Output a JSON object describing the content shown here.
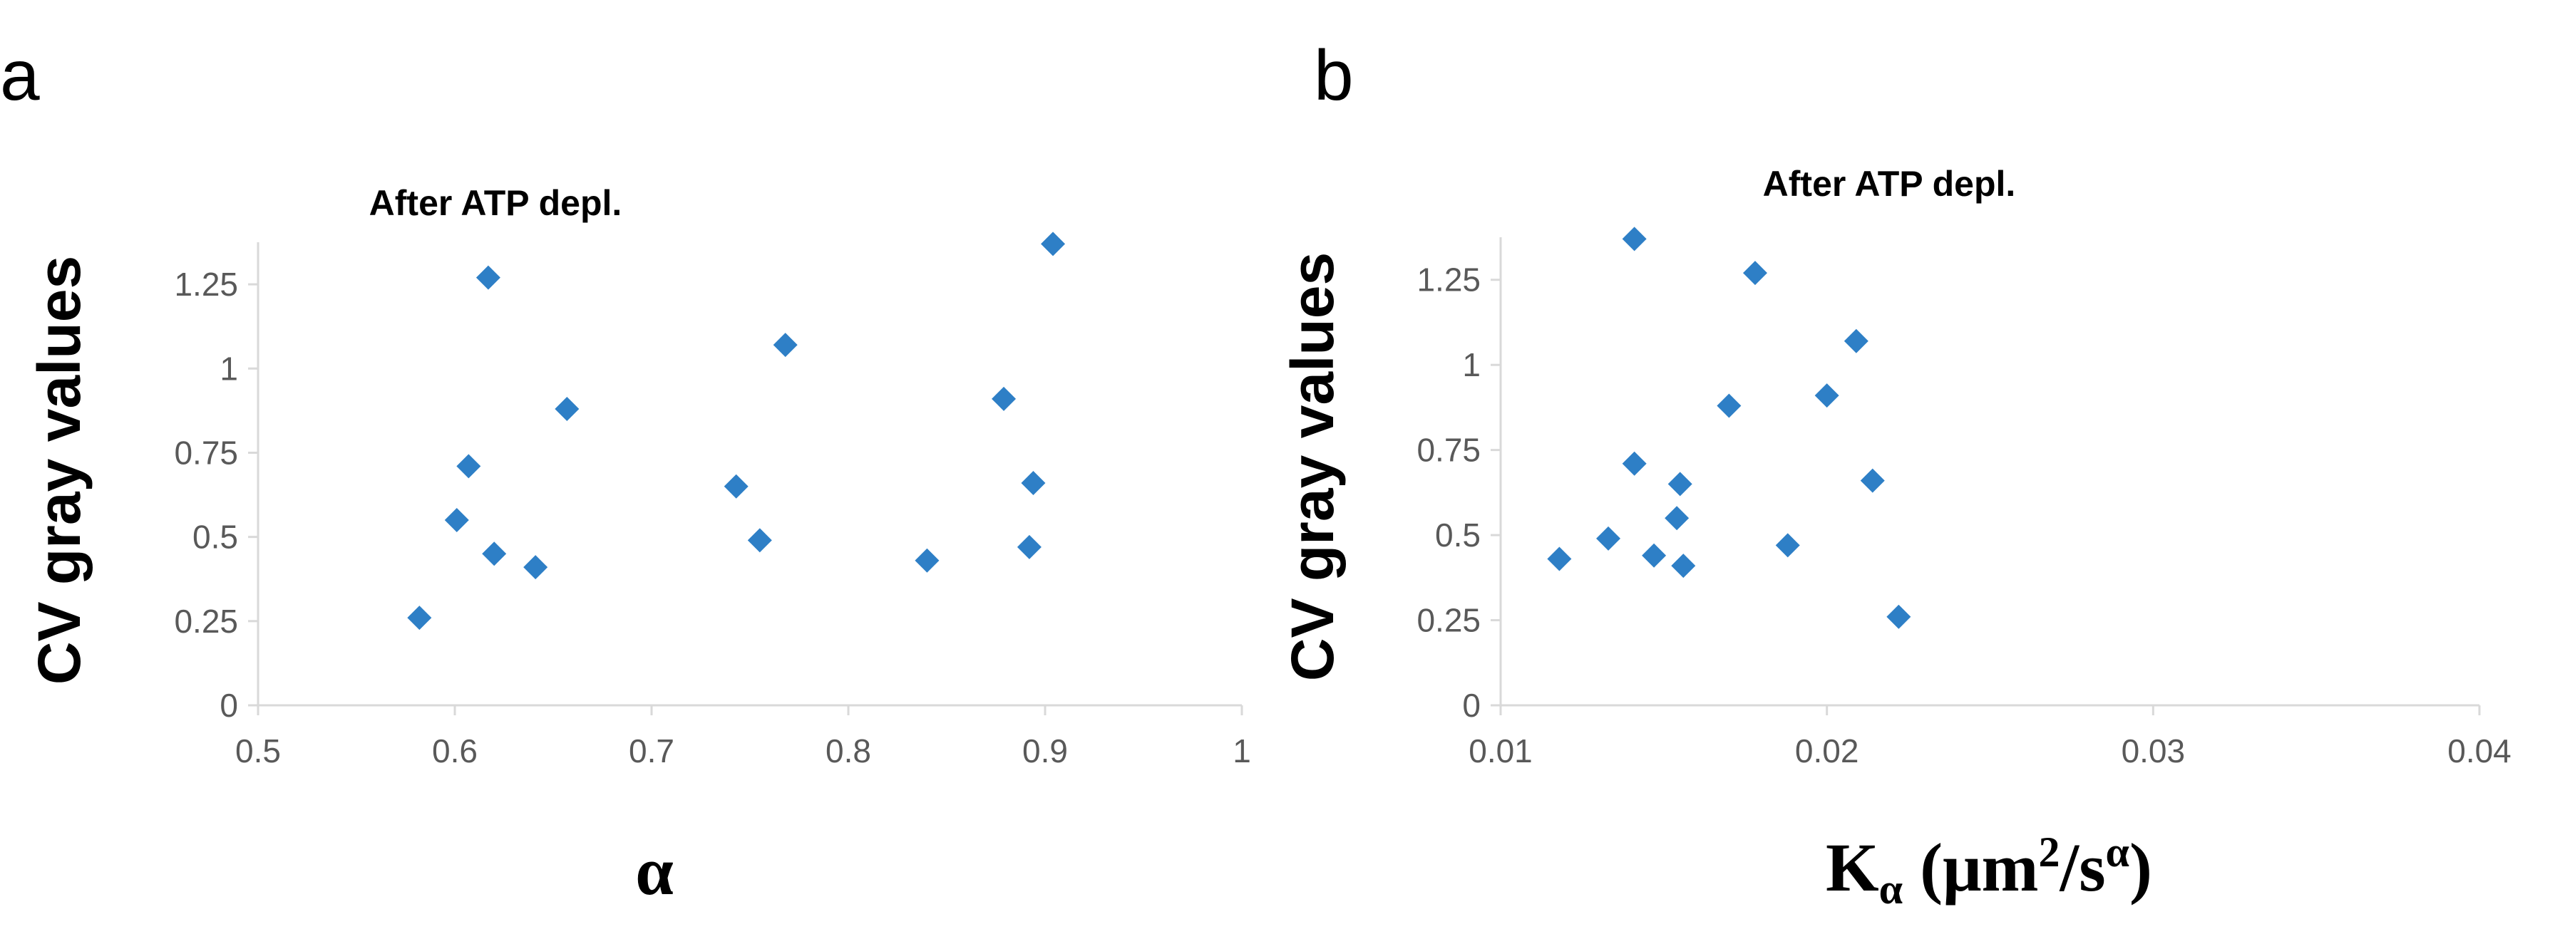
{
  "chart_data": [
    {
      "panel": "a",
      "type": "scatter",
      "title": "After ATP depl.",
      "xlabel": "α",
      "ylabel": "CV gray values",
      "xlim": [
        0.5,
        1
      ],
      "ylim": [
        0,
        1.375
      ],
      "xticks": [
        0.5,
        0.6,
        0.7,
        0.8,
        0.9,
        1
      ],
      "xtick_labels": [
        "0.5",
        "0.6",
        "0.7",
        "0.8",
        "0.9",
        "1"
      ],
      "yticks": [
        0,
        0.25,
        0.5,
        0.75,
        1,
        1.25
      ],
      "ytick_labels": [
        "0",
        "0.25",
        "0.5",
        "0.75",
        "1",
        "1.25"
      ],
      "color": "#2e7fc6",
      "x": [
        0.582,
        0.601,
        0.607,
        0.617,
        0.62,
        0.641,
        0.657,
        0.743,
        0.755,
        0.768,
        0.84,
        0.879,
        0.892,
        0.894,
        0.904
      ],
      "y": [
        0.26,
        0.55,
        0.71,
        1.27,
        0.45,
        0.41,
        0.88,
        0.65,
        0.49,
        1.07,
        0.43,
        0.91,
        0.47,
        0.66,
        1.37
      ]
    },
    {
      "panel": "b",
      "type": "scatter",
      "title": "After ATP depl.",
      "xlabel_main": "K",
      "xlabel_sub": "α",
      "xlabel_rest": " (μm",
      "xlabel_sup1": "2",
      "xlabel_mid": "/s",
      "xlabel_sup2": "α",
      "xlabel_end": ")",
      "ylabel": "CV gray values",
      "xlim": [
        0.01,
        0.04
      ],
      "ylim": [
        0,
        1.375
      ],
      "xticks": [
        0.01,
        0.02,
        0.03,
        0.04
      ],
      "xtick_labels": [
        "0.01",
        "0.02",
        "0.03",
        "0.04"
      ],
      "yticks": [
        0,
        0.25,
        0.5,
        0.75,
        1,
        1.25
      ],
      "ytick_labels": [
        "0",
        "0.25",
        "0.5",
        "0.75",
        "1",
        "1.25"
      ],
      "color": "#2e7fc6",
      "x": [
        0.0118,
        0.0133,
        0.0141,
        0.0141,
        0.0147,
        0.0154,
        0.0155,
        0.0156,
        0.017,
        0.0178,
        0.0188,
        0.02,
        0.0209,
        0.0214,
        0.0222
      ],
      "y": [
        0.43,
        0.49,
        1.37,
        0.71,
        0.44,
        0.55,
        0.65,
        0.41,
        0.88,
        1.27,
        0.47,
        0.91,
        1.07,
        0.66,
        0.26
      ]
    }
  ]
}
